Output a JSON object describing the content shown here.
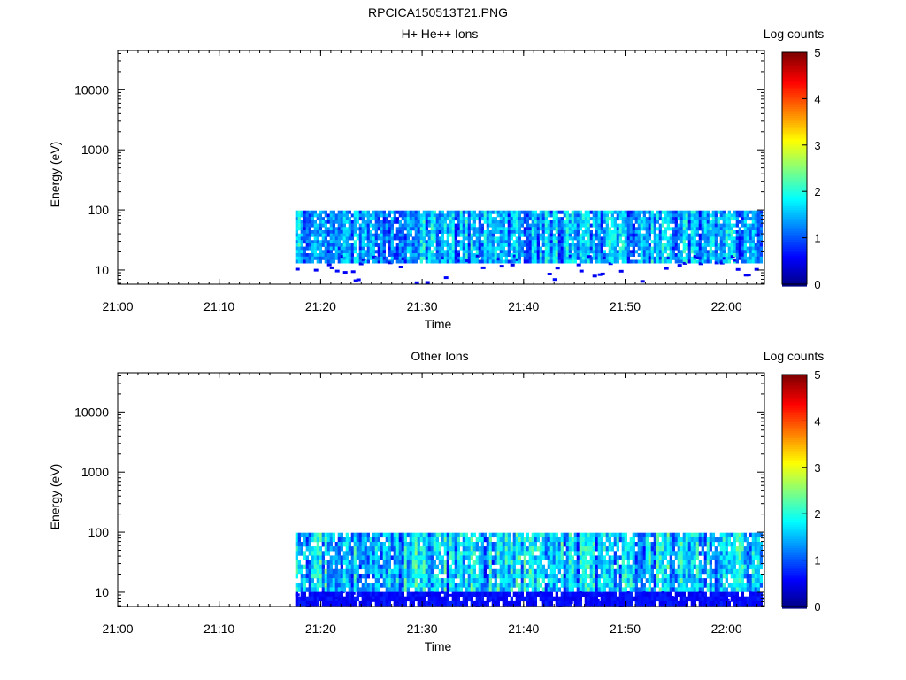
{
  "page": {
    "title": "RPCICA150513T21.PNG"
  },
  "chart_data": [
    {
      "type": "heatmap",
      "title": "H+ He++ Ions",
      "xlabel": "Time",
      "ylabel": "Energy (eV)",
      "x_ticks": [
        "21:00",
        "21:10",
        "21:20",
        "21:30",
        "21:40",
        "21:50",
        "22:00"
      ],
      "xlim_minutes": [
        0,
        63.5
      ],
      "y_scale": "log",
      "y_ticks": [
        10,
        100,
        1000,
        10000
      ],
      "y_tick_labels": [
        "10",
        "100",
        "1000",
        "10000"
      ],
      "ylim": [
        5.8,
        45000
      ],
      "colorbar": {
        "label": "Log counts",
        "range": [
          0,
          5
        ],
        "tick_labels": [
          "0",
          "1",
          "2",
          "3",
          "4",
          "5"
        ],
        "colormap": "jet"
      },
      "data_start_minute": 17.5,
      "data_end_minute": 63.5,
      "energy_max_eV": 98,
      "energy_min_eV": 13,
      "sparse_low_energy_min_eV": 6,
      "typical_log_counts": [
        0.5,
        2.8
      ]
    },
    {
      "type": "heatmap",
      "title": "Other Ions",
      "xlabel": "Time",
      "ylabel": "Energy (eV)",
      "x_ticks": [
        "21:00",
        "21:10",
        "21:20",
        "21:30",
        "21:40",
        "21:50",
        "22:00"
      ],
      "xlim_minutes": [
        0,
        63.5
      ],
      "y_scale": "log",
      "y_ticks": [
        10,
        100,
        1000,
        10000
      ],
      "y_tick_labels": [
        "10",
        "100",
        "1000",
        "10000"
      ],
      "ylim": [
        5.8,
        45000
      ],
      "colorbar": {
        "label": "Log counts",
        "range": [
          0,
          5
        ],
        "tick_labels": [
          "0",
          "1",
          "2",
          "3",
          "4",
          "5"
        ],
        "colormap": "jet"
      },
      "data_start_minute": 17.5,
      "data_end_minute": 63.5,
      "energy_max_eV": 98,
      "energy_min_eV": 6,
      "sparse_low_energy_min_eV": 6,
      "typical_log_counts": [
        0.5,
        3.2
      ]
    }
  ]
}
